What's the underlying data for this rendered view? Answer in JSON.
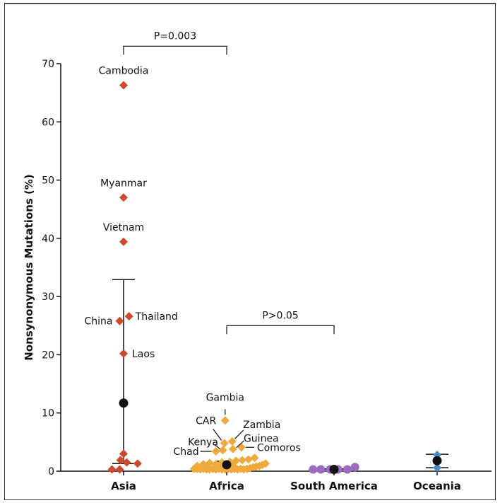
{
  "chart_data": {
    "type": "scatter",
    "ylabel": "Nonsynonymous Mutations (%)",
    "ylim": [
      0,
      70
    ],
    "yticks": [
      0,
      10,
      20,
      30,
      40,
      50,
      60,
      70
    ],
    "categories": [
      "Asia",
      "Africa",
      "South America",
      "Oceania"
    ],
    "colors": {
      "Asia": "#cc4a2e",
      "Africa": "#f0a93c",
      "South America": "#9b6bc2",
      "Oceania": "#4a8ec8",
      "mean": "#111111"
    },
    "groups": [
      {
        "category": "Asia",
        "marker": "diamond",
        "points": [
          {
            "x": 0.0,
            "y": 66.3,
            "label": "Cambodia"
          },
          {
            "x": 0.0,
            "y": 47.0,
            "label": "Myanmar"
          },
          {
            "x": 0.0,
            "y": 39.4,
            "label": "Vietnam"
          },
          {
            "x": 0.07,
            "y": 26.6,
            "label": "Thailand"
          },
          {
            "x": -0.05,
            "y": 25.8,
            "label": "China"
          },
          {
            "x": 0.0,
            "y": 20.2,
            "label": "Laos"
          },
          {
            "x": 0.0,
            "y": 3.0
          },
          {
            "x": -0.04,
            "y": 1.9
          },
          {
            "x": 0.04,
            "y": 1.5
          },
          {
            "x": 0.18,
            "y": 1.3
          },
          {
            "x": -0.15,
            "y": 0.3
          },
          {
            "x": -0.05,
            "y": 0.3
          }
        ],
        "mean": 11.7,
        "error": [
          1.3,
          32.9
        ]
      },
      {
        "category": "Africa",
        "marker": "diamond",
        "points": [
          {
            "x": -0.02,
            "y": 8.7,
            "label": "Gambia"
          },
          {
            "x": -0.03,
            "y": 4.8,
            "label": "CAR"
          },
          {
            "x": 0.07,
            "y": 5.1,
            "label": "Zambia"
          },
          {
            "x": -0.05,
            "y": 3.6,
            "label": "Kenya"
          },
          {
            "x": 0.08,
            "y": 3.8,
            "label": "Guinea"
          },
          {
            "x": -0.14,
            "y": 3.4,
            "label": "Chad"
          },
          {
            "x": 0.19,
            "y": 4.1,
            "label": "Comoros"
          },
          {
            "x": -0.42,
            "y": 0.4
          },
          {
            "x": -0.38,
            "y": 0.4
          },
          {
            "x": -0.34,
            "y": 0.3
          },
          {
            "x": -0.3,
            "y": 0.4
          },
          {
            "x": -0.26,
            "y": 0.3
          },
          {
            "x": -0.22,
            "y": 0.3
          },
          {
            "x": -0.18,
            "y": 0.4
          },
          {
            "x": -0.14,
            "y": 0.3
          },
          {
            "x": -0.1,
            "y": 0.4
          },
          {
            "x": -0.06,
            "y": 0.3
          },
          {
            "x": -0.02,
            "y": 0.3
          },
          {
            "x": 0.02,
            "y": 0.4
          },
          {
            "x": 0.06,
            "y": 0.3
          },
          {
            "x": 0.1,
            "y": 0.4
          },
          {
            "x": 0.14,
            "y": 0.3
          },
          {
            "x": 0.18,
            "y": 0.4
          },
          {
            "x": 0.22,
            "y": 0.3
          },
          {
            "x": 0.26,
            "y": 0.4
          },
          {
            "x": 0.3,
            "y": 0.5
          },
          {
            "x": 0.34,
            "y": 0.7
          },
          {
            "x": 0.38,
            "y": 0.8
          },
          {
            "x": 0.42,
            "y": 0.9
          },
          {
            "x": 0.46,
            "y": 1.1
          },
          {
            "x": 0.5,
            "y": 1.3
          },
          {
            "x": -0.3,
            "y": 1.2
          },
          {
            "x": -0.22,
            "y": 1.4
          },
          {
            "x": -0.14,
            "y": 1.2
          },
          {
            "x": -0.06,
            "y": 1.5
          },
          {
            "x": 0.04,
            "y": 1.6
          },
          {
            "x": 0.12,
            "y": 1.8
          },
          {
            "x": 0.2,
            "y": 1.9
          },
          {
            "x": 0.28,
            "y": 2.0
          },
          {
            "x": 0.36,
            "y": 2.3
          },
          {
            "x": -0.26,
            "y": 0.9
          },
          {
            "x": -0.1,
            "y": 0.8
          },
          {
            "x": 0.08,
            "y": 0.9
          },
          {
            "x": 0.0,
            "y": 1.0
          },
          {
            "x": -0.38,
            "y": 0.9
          }
        ],
        "mean": 1.1,
        "error": [
          0.5,
          1.7
        ]
      },
      {
        "category": "South America",
        "marker": "circle",
        "points": [
          {
            "x": -0.27,
            "y": 0.3
          },
          {
            "x": -0.17,
            "y": 0.3
          },
          {
            "x": -0.05,
            "y": 0.3
          },
          {
            "x": 0.05,
            "y": 0.3
          },
          {
            "x": 0.17,
            "y": 0.3
          },
          {
            "x": 0.27,
            "y": 0.7
          }
        ],
        "mean": 0.3,
        "error": [
          0.3,
          0.4
        ]
      },
      {
        "category": "Oceania",
        "marker": "diamond",
        "points": [
          {
            "x": 0.0,
            "y": 2.8
          },
          {
            "x": 0.0,
            "y": 0.6
          }
        ],
        "mean": 1.8,
        "error": [
          0.6,
          2.9
        ]
      }
    ],
    "comparisons": [
      {
        "from": "Asia",
        "to": "Africa",
        "y": 73,
        "label": "P=0.003"
      },
      {
        "from": "Africa",
        "to": "South America",
        "y": 25,
        "label": "P>0.05"
      }
    ]
  }
}
